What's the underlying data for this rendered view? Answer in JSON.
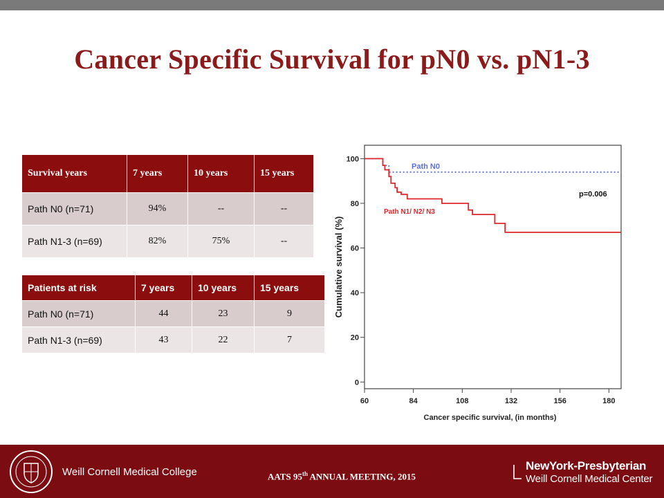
{
  "slide": {
    "title": "Cancer Specific Survival for pN0 vs. pN1-3"
  },
  "survival_table": {
    "headers": [
      "Survival years",
      "7 years",
      "10 years",
      "15 years"
    ],
    "rows": [
      [
        "Path N0  (n=71)",
        "94%",
        "--",
        "--"
      ],
      [
        "Path N1-3  (n=69)",
        "82%",
        "75%",
        "--"
      ]
    ]
  },
  "risk_table": {
    "headers": [
      "Patients at risk",
      "7 years",
      "10 years",
      "15 years"
    ],
    "rows": [
      [
        "Path N0  (n=71)",
        "44",
        "23",
        "9"
      ],
      [
        "Path N1-3  (n=69)",
        "43",
        "22",
        "7"
      ]
    ]
  },
  "chart_data": {
    "type": "line",
    "xlabel": "Cancer specific survival, (in months)",
    "ylabel": "Cumulative survival (%)",
    "xlim": [
      60,
      186
    ],
    "ylim": [
      -3,
      106
    ],
    "xticks": [
      60,
      84,
      108,
      132,
      156,
      180
    ],
    "yticks": [
      0,
      20,
      40,
      60,
      80,
      100
    ],
    "annotation": "p=0.006",
    "series": [
      {
        "name": "Path  N0",
        "style": "dotted",
        "color": "#5b6ee1",
        "x": [
          60,
          69,
          69,
          72,
          72,
          186
        ],
        "y": [
          100,
          100,
          97,
          97,
          94,
          94
        ]
      },
      {
        "name": "Path N1/ N2/ N3",
        "style": "step",
        "color": "#e0262b",
        "x": [
          60,
          69,
          69,
          70,
          70,
          72,
          72,
          73,
          73,
          75,
          75,
          76,
          76,
          78,
          78,
          81,
          81,
          84,
          84,
          98,
          98,
          111,
          111,
          113,
          113,
          124,
          124,
          129,
          129,
          186
        ],
        "y": [
          100,
          100,
          97,
          97,
          95,
          95,
          92,
          92,
          89,
          89,
          87,
          87,
          85,
          85,
          84,
          84,
          82,
          82,
          82,
          82,
          80,
          80,
          77,
          77,
          75,
          75,
          71,
          71,
          67,
          67
        ]
      }
    ]
  },
  "footer": {
    "college": "Weill Cornell Medical College",
    "meeting_pre": "AATS 95",
    "meeting_sup": "th",
    "meeting_post": " ANNUAL MEETING, 2015",
    "hospital_line1": "NewYork-Presbyterian",
    "hospital_line2": "Weill Cornell Medical Center"
  },
  "colors": {
    "title": "#8b1a1a",
    "header_bg": "#8b0d0d",
    "row1_bg": "#d8cccc",
    "row2_bg": "#ece5e5",
    "footer_bg": "#7a0c12",
    "top_bar": "#7a7a7a"
  }
}
